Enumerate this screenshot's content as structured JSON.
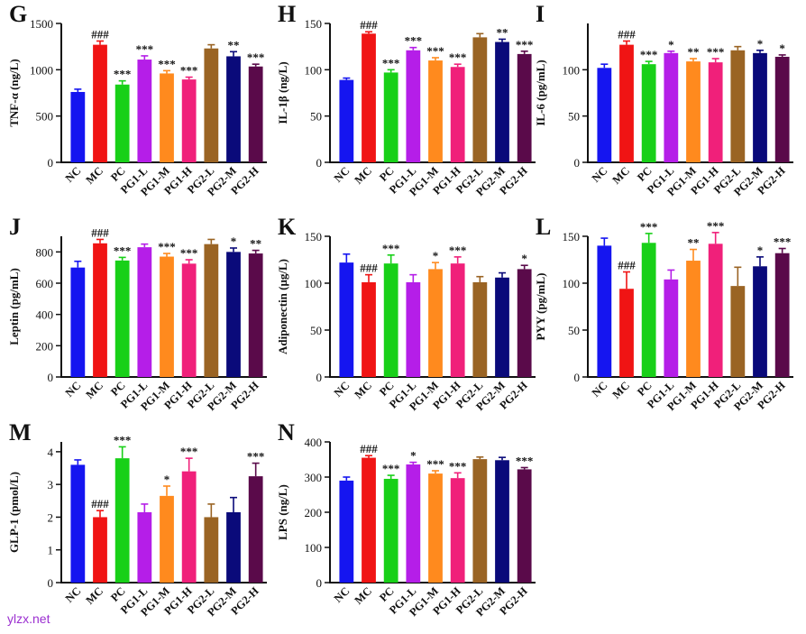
{
  "figure": {
    "groups": [
      "NC",
      "MC",
      "PC",
      "PG1-L",
      "PG1-M",
      "PG1-H",
      "PG2-L",
      "PG2-M",
      "PG2-H"
    ],
    "colors": [
      "#1515f0",
      "#f01414",
      "#18d018",
      "#b51ee8",
      "#ff8a1e",
      "#f0207a",
      "#9a6424",
      "#0a0a7a",
      "#5a0a4a"
    ],
    "watermark": "ylzx.net"
  },
  "chart_data": [
    {
      "panel": "G",
      "type": "bar",
      "ylabel": "TNF-α (ng/L)",
      "ylim": [
        0,
        1500
      ],
      "yticks": [
        0,
        500,
        1000,
        1500
      ],
      "values": [
        760,
        1270,
        840,
        1110,
        960,
        895,
        1230,
        1145,
        1035
      ],
      "errors": [
        30,
        40,
        40,
        40,
        30,
        25,
        40,
        50,
        25
      ],
      "marks": [
        "",
        "###",
        "***",
        "***",
        "***",
        "***",
        "",
        "**",
        "***"
      ]
    },
    {
      "panel": "H",
      "type": "bar",
      "ylabel": "IL-1β (ng/L)",
      "ylim": [
        0,
        150
      ],
      "yticks": [
        0,
        50,
        100,
        150
      ],
      "values": [
        89,
        139,
        97,
        121,
        110,
        103,
        135,
        130,
        117
      ],
      "errors": [
        2,
        2,
        3,
        3,
        3,
        3,
        4,
        3,
        3
      ],
      "marks": [
        "",
        "###",
        "***",
        "***",
        "***",
        "***",
        "",
        "**",
        "***"
      ]
    },
    {
      "panel": "I",
      "type": "bar",
      "ylabel": "IL-6 (pg/mL)",
      "ylim": [
        0,
        150
      ],
      "yticks": [
        0,
        50,
        100
      ],
      "values": [
        102,
        127,
        106,
        118,
        109,
        108,
        121,
        118,
        114
      ],
      "errors": [
        4,
        4,
        3,
        2,
        3,
        4,
        4,
        3,
        2
      ],
      "marks": [
        "",
        "###",
        "***",
        "*",
        "**",
        "***",
        "",
        "*",
        "*"
      ]
    },
    {
      "panel": "J",
      "type": "bar",
      "ylabel": "Leptin (pg/mL)",
      "ylim": [
        0,
        900
      ],
      "yticks": [
        0,
        200,
        400,
        600,
        800
      ],
      "values": [
        700,
        855,
        745,
        830,
        770,
        725,
        850,
        800,
        790
      ],
      "errors": [
        40,
        25,
        20,
        20,
        20,
        25,
        30,
        25,
        20
      ],
      "marks": [
        "",
        "###",
        "***",
        "",
        "***",
        "***",
        "",
        "*",
        "**"
      ]
    },
    {
      "panel": "K",
      "type": "bar",
      "ylabel": "Adiponectin (μg/L)",
      "ylim": [
        0,
        150
      ],
      "yticks": [
        0,
        50,
        100,
        150
      ],
      "values": [
        122,
        101,
        121,
        101,
        115,
        121,
        101,
        106,
        115
      ],
      "errors": [
        9,
        8,
        9,
        8,
        7,
        7,
        6,
        5,
        4
      ],
      "marks": [
        "",
        "###",
        "***",
        "",
        "*",
        "***",
        "",
        "",
        "*"
      ]
    },
    {
      "panel": "L",
      "type": "bar",
      "ylabel": "PYY (pg/mL)",
      "ylim": [
        0,
        150
      ],
      "yticks": [
        0,
        50,
        100,
        150
      ],
      "values": [
        140,
        94,
        143,
        104,
        124,
        142,
        97,
        118,
        132
      ],
      "errors": [
        8,
        18,
        10,
        10,
        12,
        12,
        20,
        10,
        5
      ],
      "marks": [
        "",
        "###",
        "***",
        "",
        "**",
        "***",
        "",
        "*",
        "***"
      ]
    },
    {
      "panel": "M",
      "type": "bar",
      "ylabel": "GLP-1 (pmol/L)",
      "ylim": [
        0,
        4.3
      ],
      "yticks": [
        0,
        1,
        2,
        3,
        4
      ],
      "values": [
        3.6,
        2.0,
        3.8,
        2.15,
        2.65,
        3.4,
        2.0,
        2.15,
        3.25
      ],
      "errors": [
        0.15,
        0.2,
        0.35,
        0.25,
        0.3,
        0.4,
        0.4,
        0.45,
        0.4
      ],
      "marks": [
        "",
        "###",
        "***",
        "",
        "*",
        "***",
        "",
        "",
        "***"
      ]
    },
    {
      "panel": "N",
      "type": "bar",
      "ylabel": "LPS (ng/L)",
      "ylim": [
        0,
        400
      ],
      "yticks": [
        0,
        100,
        200,
        300,
        400
      ],
      "values": [
        290,
        355,
        295,
        336,
        310,
        297,
        351,
        348,
        322
      ],
      "errors": [
        10,
        6,
        10,
        6,
        8,
        15,
        6,
        8,
        5
      ],
      "marks": [
        "",
        "###",
        "***",
        "*",
        "***",
        "***",
        "",
        "",
        "***"
      ]
    }
  ]
}
